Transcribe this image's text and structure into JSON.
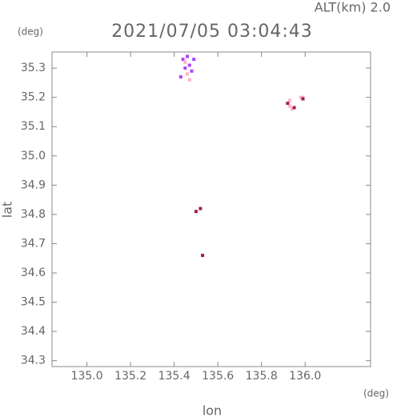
{
  "chart_data": {
    "type": "scatter",
    "title": "2021/07/05 03:04:43",
    "subtitle": "ALT(km) 2.0",
    "x_label": "lon",
    "y_label": "lat",
    "x_unit": "(deg)",
    "y_unit": "(deg)",
    "xlim": [
      134.84,
      136.3
    ],
    "ylim": [
      34.28,
      35.355
    ],
    "xticks": [
      {
        "value": 135,
        "label": "135.0"
      },
      135.2,
      135.4,
      135.6,
      135.8,
      {
        "value": 136,
        "label": "136.0"
      }
    ],
    "yticks": [
      34.3,
      34.4,
      34.5,
      34.6,
      34.7,
      34.8,
      34.9,
      {
        "value": 35,
        "label": "35.0"
      },
      35.1,
      35.2,
      35.3
    ],
    "series": [
      {
        "color": "#b040ff",
        "x": [
          135.44,
          135.46,
          135.49,
          135.45,
          135.48,
          135.43,
          135.47
        ],
        "y": [
          35.33,
          35.34,
          35.33,
          35.3,
          35.29,
          35.27,
          35.31
        ]
      },
      {
        "color": "#ffb0c8",
        "x": [
          135.46,
          135.47,
          135.45,
          135.92,
          135.93,
          135.94,
          135.93,
          135.99,
          135.98
        ],
        "y": [
          35.28,
          35.26,
          35.32,
          35.18,
          35.17,
          35.16,
          35.19,
          35.2,
          35.2
        ]
      },
      {
        "color": "#a02040",
        "x": [
          135.92,
          135.95,
          135.5,
          135.52,
          135.53,
          135.99
        ],
        "y": [
          35.18,
          35.165,
          34.81,
          34.82,
          34.66,
          35.195
        ]
      }
    ]
  }
}
